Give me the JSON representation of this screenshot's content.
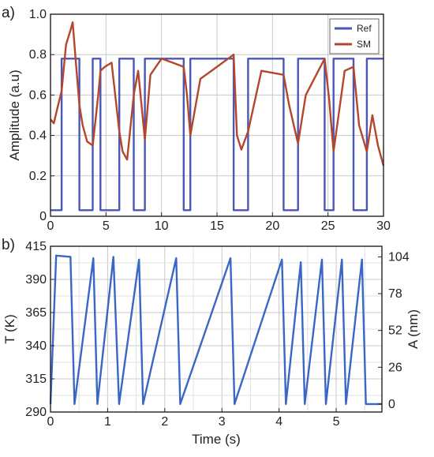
{
  "chart_data": [
    {
      "panel_label": "a)",
      "type": "line",
      "xlabel": "",
      "ylabel": "Amplitude (a.u)",
      "xlim": [
        0,
        30
      ],
      "ylim": [
        0,
        1.0
      ],
      "xticks": [
        "0",
        "5",
        "10",
        "15",
        "20",
        "25",
        "30"
      ],
      "yticks": [
        "0",
        "0.2",
        "0.4",
        "0.6",
        "0.8",
        "1.0"
      ],
      "grid": true,
      "legend": "top-right",
      "series": [
        {
          "name": "Ref",
          "color": "#4a56b8",
          "x": [
            0,
            1.0,
            1.0,
            2.6,
            2.6,
            3.8,
            3.8,
            4.5,
            4.5,
            6.2,
            6.2,
            7.5,
            7.5,
            8.5,
            8.5,
            12.0,
            12.0,
            12.6,
            12.6,
            16.5,
            16.5,
            17.8,
            17.8,
            21.0,
            21.0,
            22.3,
            22.3,
            24.7,
            24.7,
            25.5,
            25.5,
            27.3,
            27.3,
            28.5,
            28.5,
            30
          ],
          "y": [
            0.03,
            0.03,
            0.78,
            0.78,
            0.03,
            0.03,
            0.78,
            0.78,
            0.03,
            0.03,
            0.78,
            0.78,
            0.03,
            0.03,
            0.78,
            0.78,
            0.03,
            0.03,
            0.78,
            0.78,
            0.03,
            0.03,
            0.78,
            0.78,
            0.03,
            0.03,
            0.78,
            0.78,
            0.03,
            0.03,
            0.78,
            0.78,
            0.03,
            0.03,
            0.78,
            0.78
          ]
        },
        {
          "name": "SM",
          "color": "#b5462c",
          "x": [
            0,
            0.3,
            0.6,
            1.0,
            1.4,
            1.8,
            2.0,
            2.3,
            2.6,
            2.9,
            3.3,
            3.8,
            4.3,
            4.5,
            4.9,
            5.5,
            6.2,
            6.5,
            6.9,
            7.5,
            7.9,
            8.5,
            9.0,
            10.0,
            11.0,
            12.0,
            12.3,
            12.6,
            13.5,
            15.0,
            16.5,
            16.8,
            17.2,
            17.8,
            19.0,
            21.0,
            21.5,
            22.3,
            23.0,
            24.7,
            25.1,
            25.5,
            26.5,
            27.3,
            27.8,
            28.5,
            29.0,
            29.5,
            30
          ],
          "y": [
            0.48,
            0.46,
            0.53,
            0.62,
            0.85,
            0.92,
            0.96,
            0.75,
            0.55,
            0.45,
            0.37,
            0.35,
            0.6,
            0.72,
            0.74,
            0.76,
            0.42,
            0.32,
            0.28,
            0.6,
            0.72,
            0.38,
            0.7,
            0.78,
            0.76,
            0.74,
            0.6,
            0.4,
            0.68,
            0.74,
            0.8,
            0.4,
            0.33,
            0.42,
            0.72,
            0.7,
            0.55,
            0.36,
            0.6,
            0.78,
            0.58,
            0.32,
            0.72,
            0.74,
            0.45,
            0.32,
            0.5,
            0.35,
            0.25
          ]
        }
      ]
    },
    {
      "panel_label": "b)",
      "type": "line",
      "xlabel": "Time (s)",
      "ylabel": "T (K)",
      "ylabel_right": "A (nm)",
      "xlim": [
        0,
        5.8
      ],
      "ylim": [
        290,
        415
      ],
      "xticks": [
        "0",
        "1",
        "2",
        "3",
        "4",
        "5"
      ],
      "yticks": [
        "290",
        "315",
        "340",
        "365",
        "390",
        "415"
      ],
      "yticks_right": [
        "0",
        "26",
        "52",
        "78",
        "104"
      ],
      "grid": true,
      "series": [
        {
          "color": "#3a66c8",
          "x": [
            0.0,
            0.1,
            0.35,
            0.42,
            0.75,
            0.82,
            1.1,
            1.2,
            1.55,
            1.62,
            2.2,
            2.27,
            3.15,
            3.22,
            4.05,
            4.12,
            4.38,
            4.45,
            4.75,
            4.82,
            5.1,
            5.17,
            5.45,
            5.52,
            5.8
          ],
          "y": [
            296,
            408,
            407,
            296,
            406,
            296,
            407,
            296,
            405,
            296,
            406,
            296,
            406,
            296,
            405,
            296,
            403,
            296,
            405,
            296,
            405,
            296,
            405,
            296,
            296
          ]
        }
      ]
    }
  ],
  "legend": {
    "ref_label": "Ref",
    "sm_label": "SM"
  }
}
